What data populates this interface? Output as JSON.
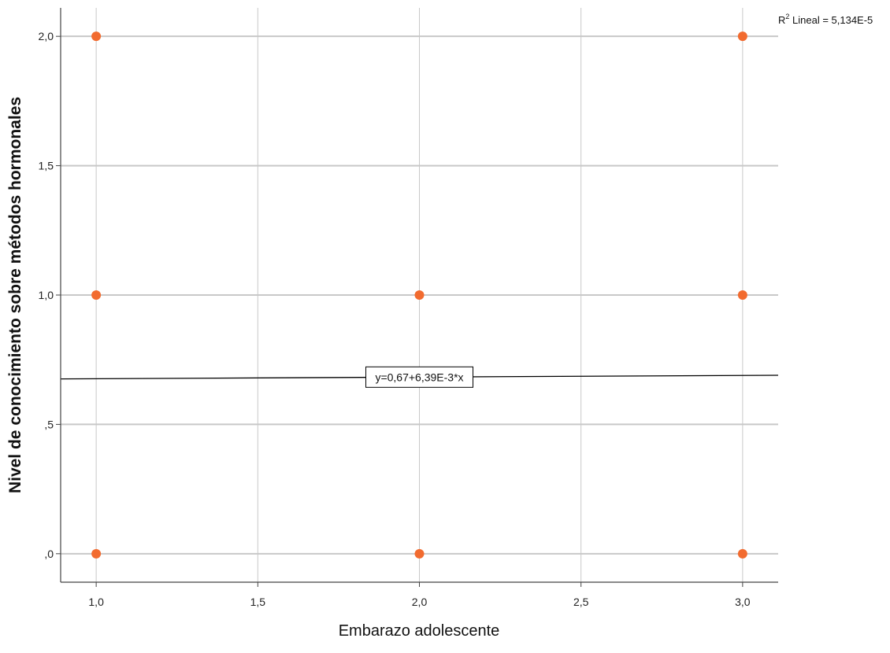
{
  "chart_data": {
    "type": "scatter",
    "xlabel": "Embarazo adolescente",
    "ylabel": "Nivel de conocimiento sobre métodos hormonales",
    "xlim": [
      0.89,
      3.11
    ],
    "ylim": [
      -0.11,
      2.11
    ],
    "x_ticks": [
      1.0,
      1.5,
      2.0,
      2.5,
      3.0
    ],
    "x_tick_labels": [
      "1,0",
      "1,5",
      "2,0",
      "2,5",
      "3,0"
    ],
    "y_ticks": [
      0.0,
      0.5,
      1.0,
      1.5,
      2.0
    ],
    "y_tick_labels": [
      ",0",
      ",5",
      "1,0",
      "1,5",
      "2,0"
    ],
    "grid": true,
    "series": [
      {
        "color": "#f26b2f",
        "points": [
          {
            "x": 1.0,
            "y": 2.0
          },
          {
            "x": 1.0,
            "y": 1.0
          },
          {
            "x": 1.0,
            "y": 0.0
          },
          {
            "x": 2.0,
            "y": 1.0
          },
          {
            "x": 2.0,
            "y": 0.0
          },
          {
            "x": 3.0,
            "y": 2.0
          },
          {
            "x": 3.0,
            "y": 1.0
          },
          {
            "x": 3.0,
            "y": 0.0
          }
        ]
      }
    ],
    "fit_line": {
      "intercept": 0.67,
      "slope": 0.00639,
      "equation_label": "y=0,67+6,39E-3*x",
      "color": "#000000"
    },
    "r_squared": {
      "prefix": "R",
      "superscript": "2",
      "text": " Lineal = 5,134E-5"
    }
  }
}
